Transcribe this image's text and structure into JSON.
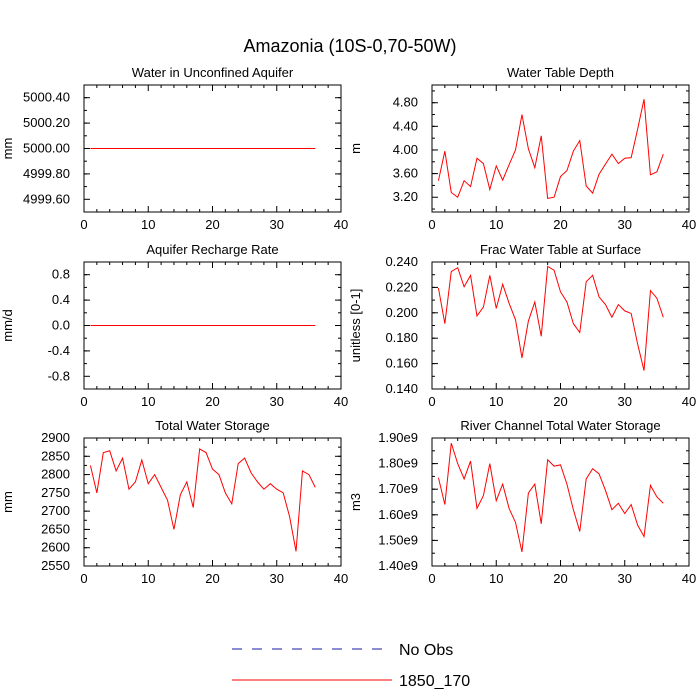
{
  "page_title": "Amazonia (10S-0,70-50W)",
  "legend": [
    {
      "label": "No Obs",
      "color": "#1a1aa6",
      "dashed": true
    },
    {
      "label": "1850_170",
      "color": "#ff0000",
      "dashed": false
    }
  ],
  "chart_data": [
    {
      "type": "line",
      "title": "Water in Unconfined Aquifer",
      "ylabel": "mm",
      "xlim": [
        0,
        40
      ],
      "xticks": [
        "0",
        "10",
        "20",
        "30",
        "40"
      ],
      "ylim": [
        4999.5,
        5000.5
      ],
      "yticks": [
        "4999.60",
        "4999.80",
        "5000.00",
        "5000.20",
        "5000.40"
      ],
      "series": [
        {
          "color": "#ff0000",
          "x": [
            1,
            36
          ],
          "values": [
            5000.0,
            5000.0
          ]
        }
      ]
    },
    {
      "type": "line",
      "title": "Water Table Depth",
      "ylabel": "m",
      "xlim": [
        0,
        40
      ],
      "xticks": [
        "0",
        "10",
        "20",
        "30",
        "40"
      ],
      "ylim": [
        2.95,
        5.1
      ],
      "yticks": [
        "3.20",
        "3.60",
        "4.00",
        "4.40",
        "4.80"
      ],
      "series": [
        {
          "color": "#ff0000",
          "x": [
            1,
            2,
            3,
            4,
            5,
            6,
            7,
            8,
            9,
            10,
            11,
            12,
            13,
            14,
            15,
            16,
            17,
            18,
            19,
            20,
            21,
            22,
            23,
            24,
            25,
            26,
            27,
            28,
            29,
            30,
            31,
            32,
            33,
            34,
            35,
            36
          ],
          "values": [
            3.48,
            3.98,
            3.28,
            3.2,
            3.48,
            3.38,
            3.86,
            3.77,
            3.33,
            3.73,
            3.49,
            3.75,
            4.0,
            4.6,
            4.02,
            3.7,
            4.24,
            3.18,
            3.2,
            3.55,
            3.65,
            3.98,
            4.16,
            3.39,
            3.27,
            3.59,
            3.76,
            3.93,
            3.77,
            3.86,
            3.87,
            4.35,
            4.86,
            3.58,
            3.63,
            3.93
          ]
        }
      ]
    },
    {
      "type": "line",
      "title": "Aquifer Recharge Rate",
      "ylabel": "mm/d",
      "xlim": [
        0,
        40
      ],
      "xticks": [
        "0",
        "10",
        "20",
        "30",
        "40"
      ],
      "ylim": [
        -1.0,
        1.0
      ],
      "yticks": [
        "-0.8",
        "-0.4",
        "0.0",
        "0.4",
        "0.8"
      ],
      "series": [
        {
          "color": "#ff0000",
          "x": [
            1,
            36
          ],
          "values": [
            0.0,
            0.0
          ]
        }
      ]
    },
    {
      "type": "line",
      "title": "Frac Water Table at Surface",
      "ylabel": "unitless [0-1]",
      "xlim": [
        0,
        40
      ],
      "xticks": [
        "0",
        "10",
        "20",
        "30",
        "40"
      ],
      "ylim": [
        0.14,
        0.24
      ],
      "yticks": [
        "0.140",
        "0.160",
        "0.180",
        "0.200",
        "0.220",
        "0.240"
      ],
      "series": [
        {
          "color": "#ff0000",
          "x": [
            1,
            2,
            3,
            4,
            5,
            6,
            7,
            8,
            9,
            10,
            11,
            12,
            13,
            14,
            15,
            16,
            17,
            18,
            19,
            20,
            21,
            22,
            23,
            24,
            25,
            26,
            27,
            28,
            29,
            30,
            31,
            32,
            33,
            34,
            35,
            36
          ],
          "values": [
            0.2195,
            0.1915,
            0.2325,
            0.2355,
            0.2205,
            0.2295,
            0.1975,
            0.2045,
            0.2295,
            0.2035,
            0.2225,
            0.2075,
            0.1945,
            0.1645,
            0.1935,
            0.2085,
            0.1815,
            0.2365,
            0.2335,
            0.2165,
            0.2085,
            0.1915,
            0.1845,
            0.2245,
            0.2295,
            0.2125,
            0.2065,
            0.1965,
            0.2065,
            0.2015,
            0.1995,
            0.1755,
            0.1545,
            0.2175,
            0.2115,
            0.1965
          ]
        }
      ]
    },
    {
      "type": "line",
      "title": "Total Water Storage",
      "ylabel": "mm",
      "xlim": [
        0,
        40
      ],
      "xticks": [
        "0",
        "10",
        "20",
        "30",
        "40"
      ],
      "ylim": [
        2550,
        2900
      ],
      "yticks": [
        "2550",
        "2600",
        "2650",
        "2700",
        "2750",
        "2800",
        "2850",
        "2900"
      ],
      "series": [
        {
          "color": "#ff0000",
          "x": [
            1,
            2,
            3,
            4,
            5,
            6,
            7,
            8,
            9,
            10,
            11,
            12,
            13,
            14,
            15,
            16,
            17,
            18,
            19,
            20,
            21,
            22,
            23,
            24,
            25,
            26,
            27,
            28,
            29,
            30,
            31,
            32,
            33,
            34,
            35,
            36
          ],
          "values": [
            2825,
            2750,
            2860,
            2865,
            2810,
            2845,
            2760,
            2780,
            2840,
            2775,
            2800,
            2765,
            2730,
            2650,
            2745,
            2780,
            2710,
            2870,
            2860,
            2815,
            2800,
            2750,
            2720,
            2830,
            2845,
            2805,
            2780,
            2760,
            2775,
            2760,
            2750,
            2685,
            2590,
            2810,
            2800,
            2765
          ]
        }
      ]
    },
    {
      "type": "line",
      "title": "River Channel Total Water Storage",
      "ylabel": "m3",
      "xlim": [
        0,
        40
      ],
      "xticks": [
        "0",
        "10",
        "20",
        "30",
        "40"
      ],
      "ylim": [
        1400000000.0,
        1900000000.0
      ],
      "yticks": [
        "1.40e9",
        "1.50e9",
        "1.60e9",
        "1.70e9",
        "1.80e9",
        "1.90e9"
      ],
      "series": [
        {
          "color": "#ff0000",
          "x": [
            1,
            2,
            3,
            4,
            5,
            6,
            7,
            8,
            9,
            10,
            11,
            12,
            13,
            14,
            15,
            16,
            17,
            18,
            19,
            20,
            21,
            22,
            23,
            24,
            25,
            26,
            27,
            28,
            29,
            30,
            31,
            32,
            33,
            34,
            35,
            36
          ],
          "values": [
            1745000000.0,
            1640000000.0,
            1880000000.0,
            1800000000.0,
            1740000000.0,
            1810000000.0,
            1625000000.0,
            1675000000.0,
            1800000000.0,
            1655000000.0,
            1720000000.0,
            1625000000.0,
            1570000000.0,
            1455000000.0,
            1685000000.0,
            1720000000.0,
            1565000000.0,
            1815000000.0,
            1790000000.0,
            1795000000.0,
            1720000000.0,
            1620000000.0,
            1535000000.0,
            1740000000.0,
            1780000000.0,
            1760000000.0,
            1695000000.0,
            1620000000.0,
            1645000000.0,
            1605000000.0,
            1640000000.0,
            1560000000.0,
            1515000000.0,
            1715000000.0,
            1670000000.0,
            1645000000.0
          ]
        }
      ]
    }
  ]
}
